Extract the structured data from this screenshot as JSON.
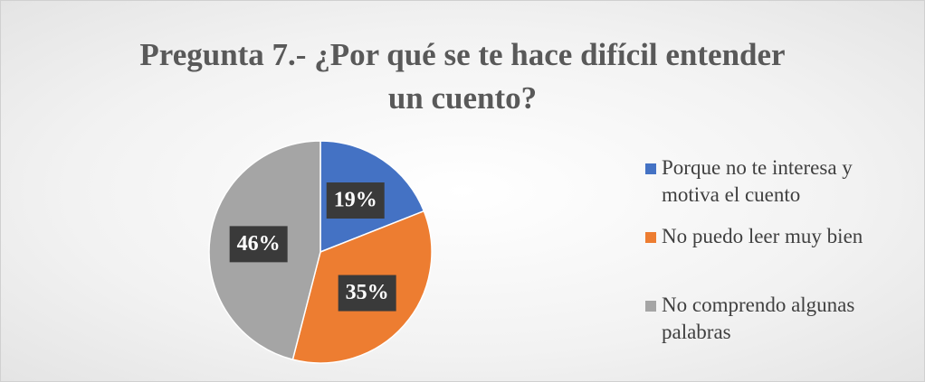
{
  "chart_data": {
    "type": "pie",
    "title": "Pregunta 7.- ¿Por qué se te hace difícil entender un cuento?",
    "categories": [
      "Porque no te interesa y motiva el cuento",
      "No puedo leer muy bien",
      "No comprendo algunas palabras"
    ],
    "values": [
      19,
      35,
      46
    ],
    "value_labels": [
      "19%",
      "35%",
      "46%"
    ],
    "colors": [
      "#4472c4",
      "#ed7d31",
      "#a5a5a5"
    ],
    "legend": "right"
  }
}
